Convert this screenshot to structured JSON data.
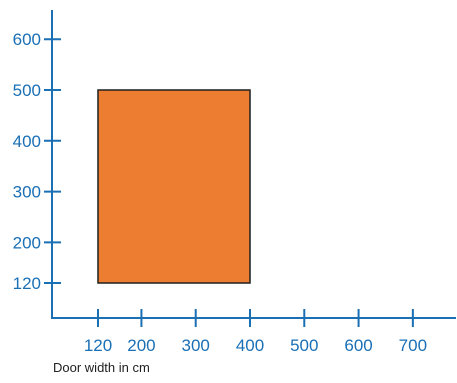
{
  "chart_data": {
    "type": "area",
    "title": "",
    "xlabel": "Door width in cm",
    "ylabel": "",
    "x_ticks": [
      120,
      200,
      300,
      400,
      500,
      600,
      700
    ],
    "y_ticks": [
      120,
      200,
      300,
      400,
      500,
      600
    ],
    "x_range": [
      0,
      780
    ],
    "y_range": [
      0,
      660
    ],
    "grid": false,
    "legend": "none",
    "regions": [
      {
        "x": [
          120,
          400
        ],
        "y": [
          120,
          500
        ],
        "fill": "#ED7D31",
        "stroke": "#1f1f1f"
      }
    ]
  },
  "colors": {
    "axis": "#1a6fb5",
    "tick_label": "#1a6fb5",
    "xlabel_text": "#222222"
  }
}
